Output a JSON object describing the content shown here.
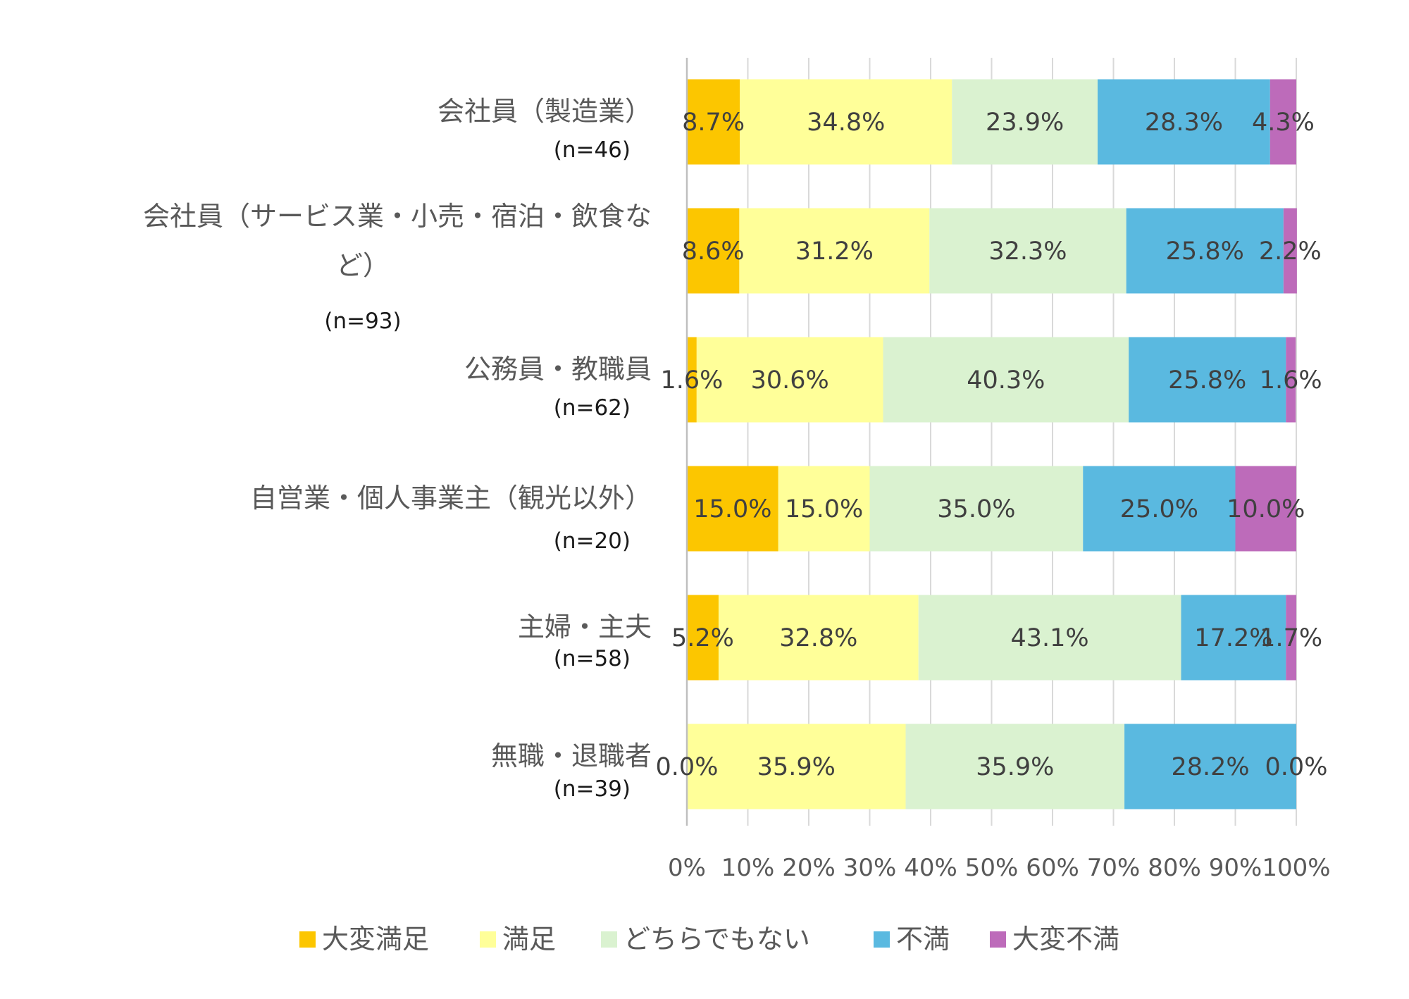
{
  "chart_data": {
    "type": "bar",
    "orientation": "horizontal",
    "stacked": "percent",
    "title": "",
    "xlabel": "",
    "ylabel": "",
    "xlim": [
      0,
      100
    ],
    "grid": true,
    "legend_position": "bottom",
    "x_ticks": [
      "0%",
      "10%",
      "20%",
      "30%",
      "40%",
      "50%",
      "60%",
      "70%",
      "80%",
      "90%",
      "100%"
    ],
    "categories": [
      {
        "name_lines": [
          "会社員（製造業）"
        ],
        "n": "(n=46)"
      },
      {
        "name_lines": [
          "会社員（サービス業・小売・宿泊・飲食な",
          "ど）"
        ],
        "n": "(n=93)"
      },
      {
        "name_lines": [
          "公務員・教職員"
        ],
        "n": "(n=62)"
      },
      {
        "name_lines": [
          "自営業・個人事業主（観光以外）"
        ],
        "n": "(n=20)"
      },
      {
        "name_lines": [
          "主婦・主夫"
        ],
        "n": "(n=58)"
      },
      {
        "name_lines": [
          "無職・退職者"
        ],
        "n": "(n=39)"
      }
    ],
    "series": [
      {
        "name": "大変満足",
        "color": "#fcc600",
        "values": [
          8.7,
          8.6,
          1.6,
          15.0,
          5.2,
          0.0
        ],
        "labels": [
          "8.7%",
          "8.6%",
          "1.6%",
          "15.0%",
          "5.2%",
          "0.0%"
        ]
      },
      {
        "name": "満足",
        "color": "#ffff99",
        "values": [
          34.8,
          31.2,
          30.6,
          15.0,
          32.8,
          35.9
        ],
        "labels": [
          "34.8%",
          "31.2%",
          "30.6%",
          "15.0%",
          "32.8%",
          "35.9%"
        ]
      },
      {
        "name": "どちらでもない",
        "color": "#daf2d0",
        "values": [
          23.9,
          32.3,
          40.3,
          35.0,
          43.1,
          35.9
        ],
        "labels": [
          "23.9%",
          "32.3%",
          "40.3%",
          "35.0%",
          "43.1%",
          "35.9%"
        ]
      },
      {
        "name": "不満",
        "color": "#5ab9e0",
        "values": [
          28.3,
          25.8,
          25.8,
          25.0,
          17.2,
          28.2
        ],
        "labels": [
          "28.3%",
          "25.8%",
          "25.8%",
          "25.0%",
          "17.2%",
          "28.2%"
        ]
      },
      {
        "name": "大変不満",
        "color": "#bd6bba",
        "values": [
          4.3,
          2.2,
          1.6,
          10.0,
          1.7,
          0.0
        ],
        "labels": [
          "4.3%",
          "2.2%",
          "1.6%",
          "10.0%",
          "1.7%",
          "0.0%"
        ]
      }
    ]
  }
}
